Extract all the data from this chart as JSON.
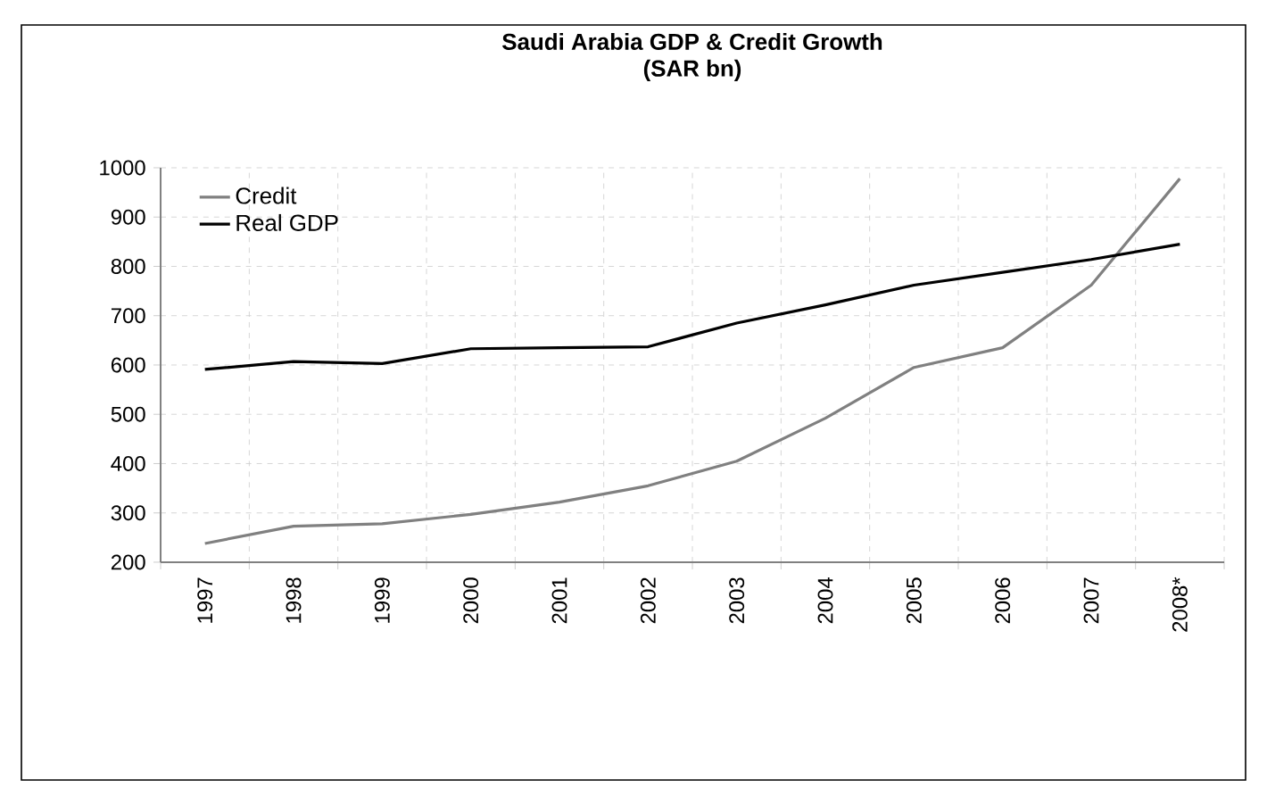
{
  "chart_data": {
    "type": "line",
    "title": "Saudi Arabia GDP & Credit Growth",
    "subtitle": "(SAR bn)",
    "categories": [
      "1997",
      "1998",
      "1999",
      "2000",
      "2001",
      "2002",
      "2003",
      "2004",
      "2005",
      "2006",
      "2007",
      "2008*"
    ],
    "series": [
      {
        "name": "Credit",
        "color": "#808080",
        "values": [
          238,
          273,
          278,
          297,
          322,
          355,
          405,
          492,
          595,
          635,
          762,
          978
        ]
      },
      {
        "name": "Real GDP",
        "color": "#000000",
        "values": [
          591,
          607,
          603,
          633,
          635,
          637,
          685,
          722,
          762,
          788,
          814,
          845
        ]
      }
    ],
    "ylim": [
      200,
      1000
    ],
    "yticks": [
      200,
      300,
      400,
      500,
      600,
      700,
      800,
      900,
      1000
    ],
    "grid": true,
    "legend": "top left",
    "marker": "none",
    "line_style": "solid"
  }
}
